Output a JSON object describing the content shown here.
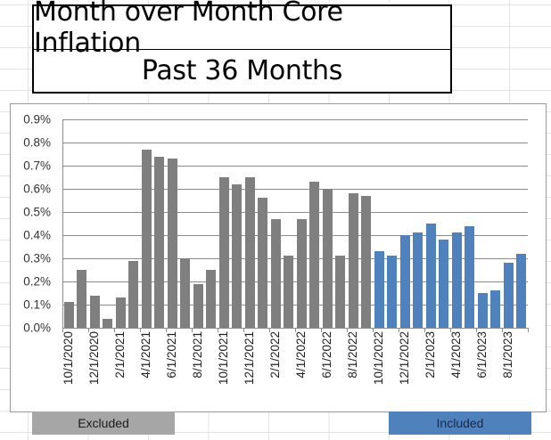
{
  "title": {
    "line1": "Month over Month Core Inflation",
    "line2": "Past 36 Months"
  },
  "bands": {
    "excluded": {
      "label": "Excluded",
      "color": "#a6a6a6",
      "text_color": "#1a1a1a"
    },
    "included": {
      "label": "Included",
      "color": "#4f81bd",
      "text_color": "#1a2a44"
    }
  },
  "colors": {
    "excluded_bar": "#7f7f7f",
    "included_bar": "#4f81bd"
  },
  "chart_data": {
    "type": "bar",
    "title": "Month over Month Core Inflation — Past 36 Months",
    "xlabel": "",
    "ylabel": "",
    "ylim": [
      0,
      0.9
    ],
    "y_unit": "%",
    "y_ticks": [
      "0.0%",
      "0.1%",
      "0.2%",
      "0.3%",
      "0.4%",
      "0.5%",
      "0.6%",
      "0.7%",
      "0.8%",
      "0.9%"
    ],
    "x_tick_labels": [
      "10/1/2020",
      "12/1/2020",
      "2/1/2021",
      "4/1/2021",
      "6/1/2021",
      "8/1/2021",
      "10/1/2021",
      "12/1/2021",
      "2/1/2022",
      "4/1/2022",
      "6/1/2022",
      "8/1/2022",
      "10/1/2022",
      "12/1/2022",
      "2/1/2023",
      "4/1/2023",
      "6/1/2023",
      "8/1/2023"
    ],
    "grid": true,
    "legend": "none (bottom bands label bar groups)",
    "categories": [
      "10/1/2020",
      "11/1/2020",
      "12/1/2020",
      "1/1/2021",
      "2/1/2021",
      "3/1/2021",
      "4/1/2021",
      "5/1/2021",
      "6/1/2021",
      "7/1/2021",
      "8/1/2021",
      "9/1/2021",
      "10/1/2021",
      "11/1/2021",
      "12/1/2021",
      "1/1/2022",
      "2/1/2022",
      "3/1/2022",
      "4/1/2022",
      "5/1/2022",
      "6/1/2022",
      "7/1/2022",
      "8/1/2022",
      "9/1/2022",
      "10/1/2022",
      "11/1/2022",
      "12/1/2022",
      "1/1/2023",
      "2/1/2023",
      "3/1/2023",
      "4/1/2023",
      "5/1/2023",
      "6/1/2023",
      "7/1/2023",
      "8/1/2023",
      "9/1/2023"
    ],
    "values": [
      0.11,
      0.25,
      0.14,
      0.04,
      0.13,
      0.29,
      0.77,
      0.74,
      0.73,
      0.3,
      0.19,
      0.25,
      0.65,
      0.62,
      0.65,
      0.56,
      0.47,
      0.31,
      0.47,
      0.63,
      0.6,
      0.31,
      0.58,
      0.57,
      0.33,
      0.31,
      0.4,
      0.41,
      0.45,
      0.38,
      0.41,
      0.44,
      0.15,
      0.16,
      0.28,
      0.32
    ],
    "series": [
      {
        "name": "Excluded",
        "color": "#7f7f7f",
        "range": [
          0,
          23
        ]
      },
      {
        "name": "Included",
        "color": "#4f81bd",
        "range": [
          24,
          35
        ]
      }
    ]
  }
}
